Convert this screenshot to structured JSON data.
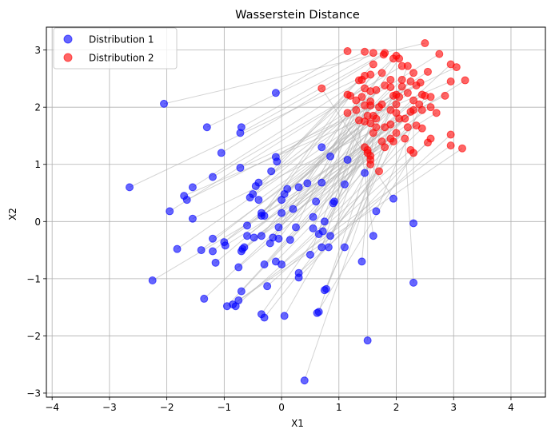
{
  "chart_data": {
    "type": "scatter",
    "title": "Wasserstein Distance",
    "xlabel": "X1",
    "ylabel": "X2",
    "xlim": [
      -4.1,
      4.6
    ],
    "ylim": [
      -3.07,
      3.4
    ],
    "xticks": [
      -4,
      -3,
      -2,
      -1,
      0,
      1,
      2,
      3,
      4
    ],
    "yticks": [
      -3,
      -2,
      -1,
      0,
      1,
      2,
      3
    ],
    "grid": true,
    "legend_position": "upper-left",
    "connector_color": "#b0b0b0",
    "series": [
      {
        "name": "Distribution 1",
        "color": "#0000ff",
        "points": [
          [
            -2.05,
            2.06
          ],
          [
            -0.1,
            2.25
          ],
          [
            -1.3,
            1.65
          ],
          [
            -0.7,
            1.65
          ],
          [
            -0.72,
            1.55
          ],
          [
            -1.05,
            1.2
          ],
          [
            0.7,
            1.3
          ],
          [
            -0.1,
            1.13
          ],
          [
            -0.08,
            1.05
          ],
          [
            0.85,
            1.14
          ],
          [
            1.15,
            1.08
          ],
          [
            -0.72,
            0.94
          ],
          [
            -0.18,
            0.88
          ],
          [
            1.45,
            0.85
          ],
          [
            -1.2,
            0.78
          ],
          [
            -0.4,
            0.68
          ],
          [
            0.45,
            0.67
          ],
          [
            1.1,
            0.65
          ],
          [
            0.7,
            0.68
          ],
          [
            -2.65,
            0.6
          ],
          [
            -1.55,
            0.6
          ],
          [
            -0.45,
            0.62
          ],
          [
            0.1,
            0.57
          ],
          [
            0.3,
            0.6
          ],
          [
            -1.7,
            0.45
          ],
          [
            -0.5,
            0.48
          ],
          [
            0.05,
            0.48
          ],
          [
            -1.65,
            0.38
          ],
          [
            -0.4,
            0.38
          ],
          [
            -0.55,
            0.42
          ],
          [
            0.0,
            0.38
          ],
          [
            0.6,
            0.35
          ],
          [
            0.9,
            0.32
          ],
          [
            0.92,
            0.35
          ],
          [
            1.95,
            0.4
          ],
          [
            -1.95,
            0.18
          ],
          [
            0.2,
            0.22
          ],
          [
            -0.35,
            0.15
          ],
          [
            0.0,
            0.15
          ],
          [
            1.65,
            0.18
          ],
          [
            -1.55,
            0.05
          ],
          [
            -0.35,
            0.1
          ],
          [
            -0.3,
            0.1
          ],
          [
            0.55,
            0.08
          ],
          [
            0.75,
            0.0
          ],
          [
            -0.6,
            -0.07
          ],
          [
            -0.05,
            -0.1
          ],
          [
            0.25,
            -0.1
          ],
          [
            0.55,
            -0.12
          ],
          [
            2.3,
            -0.03
          ],
          [
            0.72,
            -0.17
          ],
          [
            0.65,
            -0.22
          ],
          [
            -0.6,
            -0.25
          ],
          [
            -0.48,
            -0.28
          ],
          [
            -0.35,
            -0.25
          ],
          [
            -0.15,
            -0.28
          ],
          [
            -0.05,
            -0.3
          ],
          [
            0.15,
            -0.32
          ],
          [
            0.85,
            -0.25
          ],
          [
            1.6,
            -0.25
          ],
          [
            -1.2,
            -0.3
          ],
          [
            -1.0,
            -0.36
          ],
          [
            -0.98,
            -0.42
          ],
          [
            -0.2,
            -0.38
          ],
          [
            -1.82,
            -0.48
          ],
          [
            -1.4,
            -0.5
          ],
          [
            -1.2,
            -0.52
          ],
          [
            -0.65,
            -0.45
          ],
          [
            -0.7,
            -0.52
          ],
          [
            0.5,
            -0.58
          ],
          [
            0.7,
            -0.45
          ],
          [
            0.82,
            -0.45
          ],
          [
            1.1,
            -0.45
          ],
          [
            -0.68,
            -0.48
          ],
          [
            -1.15,
            -0.72
          ],
          [
            -0.3,
            -0.75
          ],
          [
            -0.1,
            -0.7
          ],
          [
            0.0,
            -0.75
          ],
          [
            1.4,
            -0.7
          ],
          [
            -0.75,
            -0.8
          ],
          [
            0.3,
            -0.9
          ],
          [
            0.3,
            -0.98
          ],
          [
            -2.25,
            -1.03
          ],
          [
            2.3,
            -1.07
          ],
          [
            -0.25,
            -1.13
          ],
          [
            -0.7,
            -1.22
          ],
          [
            0.75,
            -1.2
          ],
          [
            0.78,
            -1.18
          ],
          [
            -1.35,
            -1.35
          ],
          [
            -0.75,
            -1.38
          ],
          [
            -0.85,
            -1.45
          ],
          [
            -0.8,
            -1.48
          ],
          [
            -0.95,
            -1.48
          ],
          [
            0.65,
            -1.58
          ],
          [
            0.62,
            -1.6
          ],
          [
            -0.35,
            -1.62
          ],
          [
            0.05,
            -1.65
          ],
          [
            -0.3,
            -1.68
          ],
          [
            1.5,
            -2.08
          ],
          [
            0.4,
            -2.78
          ]
        ]
      },
      {
        "name": "Distribution 2",
        "color": "#ff0000",
        "points": [
          [
            2.5,
            3.12
          ],
          [
            1.15,
            2.98
          ],
          [
            1.45,
            2.97
          ],
          [
            1.6,
            2.95
          ],
          [
            1.8,
            2.95
          ],
          [
            1.78,
            2.92
          ],
          [
            2.0,
            2.9
          ],
          [
            2.75,
            2.93
          ],
          [
            1.95,
            2.85
          ],
          [
            2.05,
            2.85
          ],
          [
            2.95,
            2.75
          ],
          [
            3.05,
            2.7
          ],
          [
            1.6,
            2.75
          ],
          [
            2.2,
            2.72
          ],
          [
            2.1,
            2.72
          ],
          [
            2.55,
            2.62
          ],
          [
            1.75,
            2.6
          ],
          [
            2.3,
            2.6
          ],
          [
            1.55,
            2.57
          ],
          [
            1.45,
            2.55
          ],
          [
            1.4,
            2.48
          ],
          [
            1.9,
            2.48
          ],
          [
            2.1,
            2.48
          ],
          [
            3.2,
            2.47
          ],
          [
            2.95,
            2.45
          ],
          [
            1.35,
            2.47
          ],
          [
            2.25,
            2.45
          ],
          [
            2.42,
            2.43
          ],
          [
            2.35,
            2.38
          ],
          [
            1.8,
            2.38
          ],
          [
            1.9,
            2.35
          ],
          [
            2.1,
            2.36
          ],
          [
            1.65,
            2.3
          ],
          [
            1.55,
            2.28
          ],
          [
            0.7,
            2.33
          ],
          [
            1.45,
            2.33
          ],
          [
            2.2,
            2.25
          ],
          [
            2.0,
            2.22
          ],
          [
            2.45,
            2.22
          ],
          [
            2.5,
            2.2
          ],
          [
            2.85,
            2.2
          ],
          [
            1.15,
            2.22
          ],
          [
            1.2,
            2.2
          ],
          [
            1.4,
            2.18
          ],
          [
            1.95,
            2.2
          ],
          [
            2.05,
            2.18
          ],
          [
            2.6,
            2.18
          ],
          [
            1.3,
            2.12
          ],
          [
            1.55,
            2.1
          ],
          [
            2.3,
            2.12
          ],
          [
            1.75,
            2.05
          ],
          [
            2.0,
            2.05
          ],
          [
            2.4,
            2.05
          ],
          [
            2.6,
            2.0
          ],
          [
            1.45,
            2.03
          ],
          [
            1.55,
            2.03
          ],
          [
            1.7,
            2.0
          ],
          [
            2.3,
            1.95
          ],
          [
            2.45,
            1.95
          ],
          [
            1.3,
            1.95
          ],
          [
            1.9,
            1.95
          ],
          [
            2.25,
            1.92
          ],
          [
            2.7,
            1.9
          ],
          [
            1.15,
            1.9
          ],
          [
            1.5,
            1.85
          ],
          [
            1.6,
            1.85
          ],
          [
            1.65,
            1.8
          ],
          [
            2.05,
            1.8
          ],
          [
            2.15,
            1.8
          ],
          [
            1.35,
            1.77
          ],
          [
            1.45,
            1.75
          ],
          [
            1.55,
            1.72
          ],
          [
            1.9,
            1.7
          ],
          [
            2.35,
            1.68
          ],
          [
            1.65,
            1.65
          ],
          [
            1.8,
            1.65
          ],
          [
            2.2,
            1.65
          ],
          [
            2.45,
            1.63
          ],
          [
            1.6,
            1.55
          ],
          [
            2.0,
            1.55
          ],
          [
            2.95,
            1.52
          ],
          [
            2.6,
            1.45
          ],
          [
            1.9,
            1.45
          ],
          [
            2.15,
            1.45
          ],
          [
            2.55,
            1.38
          ],
          [
            1.75,
            1.4
          ],
          [
            1.95,
            1.4
          ],
          [
            1.8,
            1.3
          ],
          [
            1.45,
            1.3
          ],
          [
            2.95,
            1.33
          ],
          [
            3.15,
            1.28
          ],
          [
            2.25,
            1.25
          ],
          [
            1.5,
            1.2
          ],
          [
            1.55,
            1.15
          ],
          [
            2.3,
            1.2
          ],
          [
            1.55,
            1.08
          ],
          [
            1.55,
            1.0
          ],
          [
            1.7,
            0.88
          ],
          [
            1.5,
            1.25
          ],
          [
            2.0,
            1.9
          ]
        ]
      }
    ]
  }
}
